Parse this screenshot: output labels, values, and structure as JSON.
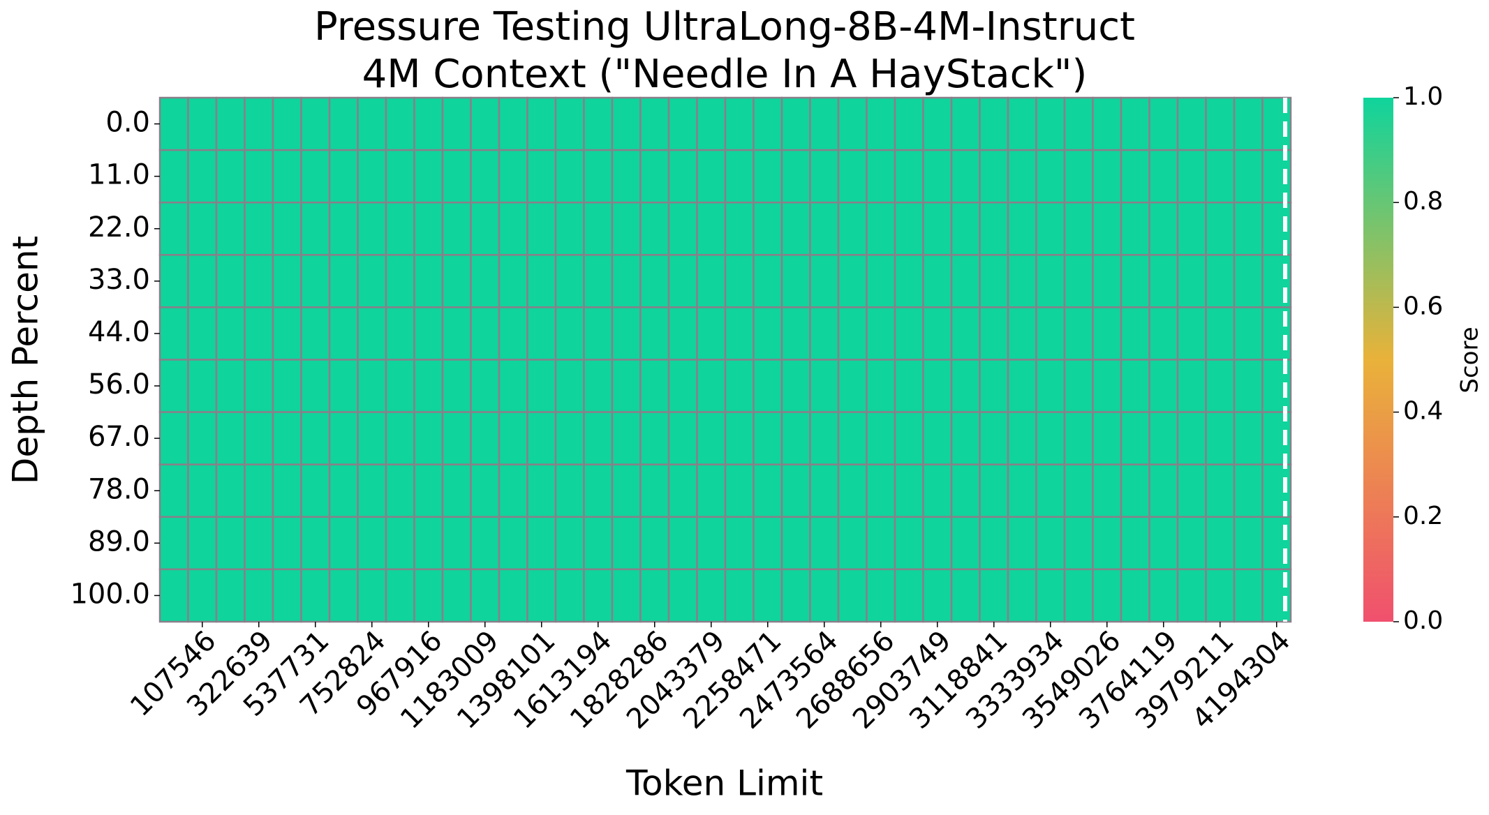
{
  "chart_data": {
    "type": "heatmap",
    "title": "Pressure Testing UltraLong-8B-4M-Instruct",
    "subtitle": "4M Context (\"Needle In A HayStack\")",
    "x_label": "Token Limit",
    "y_label": "Depth Percent",
    "x_categories": [
      null,
      "107546",
      null,
      "322639",
      null,
      "537731",
      null,
      "752824",
      null,
      "967916",
      null,
      "1183009",
      null,
      "1398101",
      null,
      "1613194",
      null,
      "1828286",
      null,
      "2043379",
      null,
      "2258471",
      null,
      "2473564",
      null,
      "2688656",
      null,
      "2903749",
      null,
      "3118841",
      null,
      "3333934",
      null,
      "3549026",
      null,
      "3764119",
      null,
      "3979211",
      null,
      "4194304"
    ],
    "y_categories": [
      "0.0",
      "11.0",
      "22.0",
      "33.0",
      "44.0",
      "56.0",
      "67.0",
      "78.0",
      "89.0",
      "100.0"
    ],
    "values": [
      [
        1,
        1,
        1,
        1,
        1,
        1,
        1,
        1,
        1,
        1,
        1,
        1,
        1,
        1,
        1,
        1,
        1,
        1,
        1,
        1,
        1,
        1,
        1,
        1,
        1,
        1,
        1,
        1,
        1,
        1,
        1,
        1,
        1,
        1,
        1,
        1,
        1,
        1,
        1,
        1
      ],
      [
        1,
        1,
        1,
        1,
        1,
        1,
        1,
        1,
        1,
        1,
        1,
        1,
        1,
        1,
        1,
        1,
        1,
        1,
        1,
        1,
        1,
        1,
        1,
        1,
        1,
        1,
        1,
        1,
        1,
        1,
        1,
        1,
        1,
        1,
        1,
        1,
        1,
        1,
        1,
        1
      ],
      [
        1,
        1,
        1,
        1,
        1,
        1,
        1,
        1,
        1,
        1,
        1,
        1,
        1,
        1,
        1,
        1,
        1,
        1,
        1,
        1,
        1,
        1,
        1,
        1,
        1,
        1,
        1,
        1,
        1,
        1,
        1,
        1,
        1,
        1,
        1,
        1,
        1,
        1,
        1,
        1
      ],
      [
        1,
        1,
        1,
        1,
        1,
        1,
        1,
        1,
        1,
        1,
        1,
        1,
        1,
        1,
        1,
        1,
        1,
        1,
        1,
        1,
        1,
        1,
        1,
        1,
        1,
        1,
        1,
        1,
        1,
        1,
        1,
        1,
        1,
        1,
        1,
        1,
        1,
        1,
        1,
        1
      ],
      [
        1,
        1,
        1,
        1,
        1,
        1,
        1,
        1,
        1,
        1,
        1,
        1,
        1,
        1,
        1,
        1,
        1,
        1,
        1,
        1,
        1,
        1,
        1,
        1,
        1,
        1,
        1,
        1,
        1,
        1,
        1,
        1,
        1,
        1,
        1,
        1,
        1,
        1,
        1,
        1
      ],
      [
        1,
        1,
        1,
        1,
        1,
        1,
        1,
        1,
        1,
        1,
        1,
        1,
        1,
        1,
        1,
        1,
        1,
        1,
        1,
        1,
        1,
        1,
        1,
        1,
        1,
        1,
        1,
        1,
        1,
        1,
        1,
        1,
        1,
        1,
        1,
        1,
        1,
        1,
        1,
        1
      ],
      [
        1,
        1,
        1,
        1,
        1,
        1,
        1,
        1,
        1,
        1,
        1,
        1,
        1,
        1,
        1,
        1,
        1,
        1,
        1,
        1,
        1,
        1,
        1,
        1,
        1,
        1,
        1,
        1,
        1,
        1,
        1,
        1,
        1,
        1,
        1,
        1,
        1,
        1,
        1,
        1
      ],
      [
        1,
        1,
        1,
        1,
        1,
        1,
        1,
        1,
        1,
        1,
        1,
        1,
        1,
        1,
        1,
        1,
        1,
        1,
        1,
        1,
        1,
        1,
        1,
        1,
        1,
        1,
        1,
        1,
        1,
        1,
        1,
        1,
        1,
        1,
        1,
        1,
        1,
        1,
        1,
        1
      ],
      [
        1,
        1,
        1,
        1,
        1,
        1,
        1,
        1,
        1,
        1,
        1,
        1,
        1,
        1,
        1,
        1,
        1,
        1,
        1,
        1,
        1,
        1,
        1,
        1,
        1,
        1,
        1,
        1,
        1,
        1,
        1,
        1,
        1,
        1,
        1,
        1,
        1,
        1,
        1,
        1
      ],
      [
        1,
        1,
        1,
        1,
        1,
        1,
        1,
        1,
        1,
        1,
        1,
        1,
        1,
        1,
        1,
        1,
        1,
        1,
        1,
        1,
        1,
        1,
        1,
        1,
        1,
        1,
        1,
        1,
        1,
        1,
        1,
        1,
        1,
        1,
        1,
        1,
        1,
        1,
        1,
        1
      ]
    ],
    "colorscale": [
      "#f0506e",
      "#e9b23a",
      "#0fd49c"
    ],
    "colorbar_label": "Score",
    "clim": [
      0,
      1
    ],
    "cticks": [
      {
        "value": 0,
        "label": "0.0"
      },
      {
        "value": 0.2,
        "label": "0.2"
      },
      {
        "value": 0.4,
        "label": "0.4"
      },
      {
        "value": 0.6,
        "label": "0.6"
      },
      {
        "value": 0.8,
        "label": "0.8"
      },
      {
        "value": 1,
        "label": "1.0"
      }
    ]
  }
}
